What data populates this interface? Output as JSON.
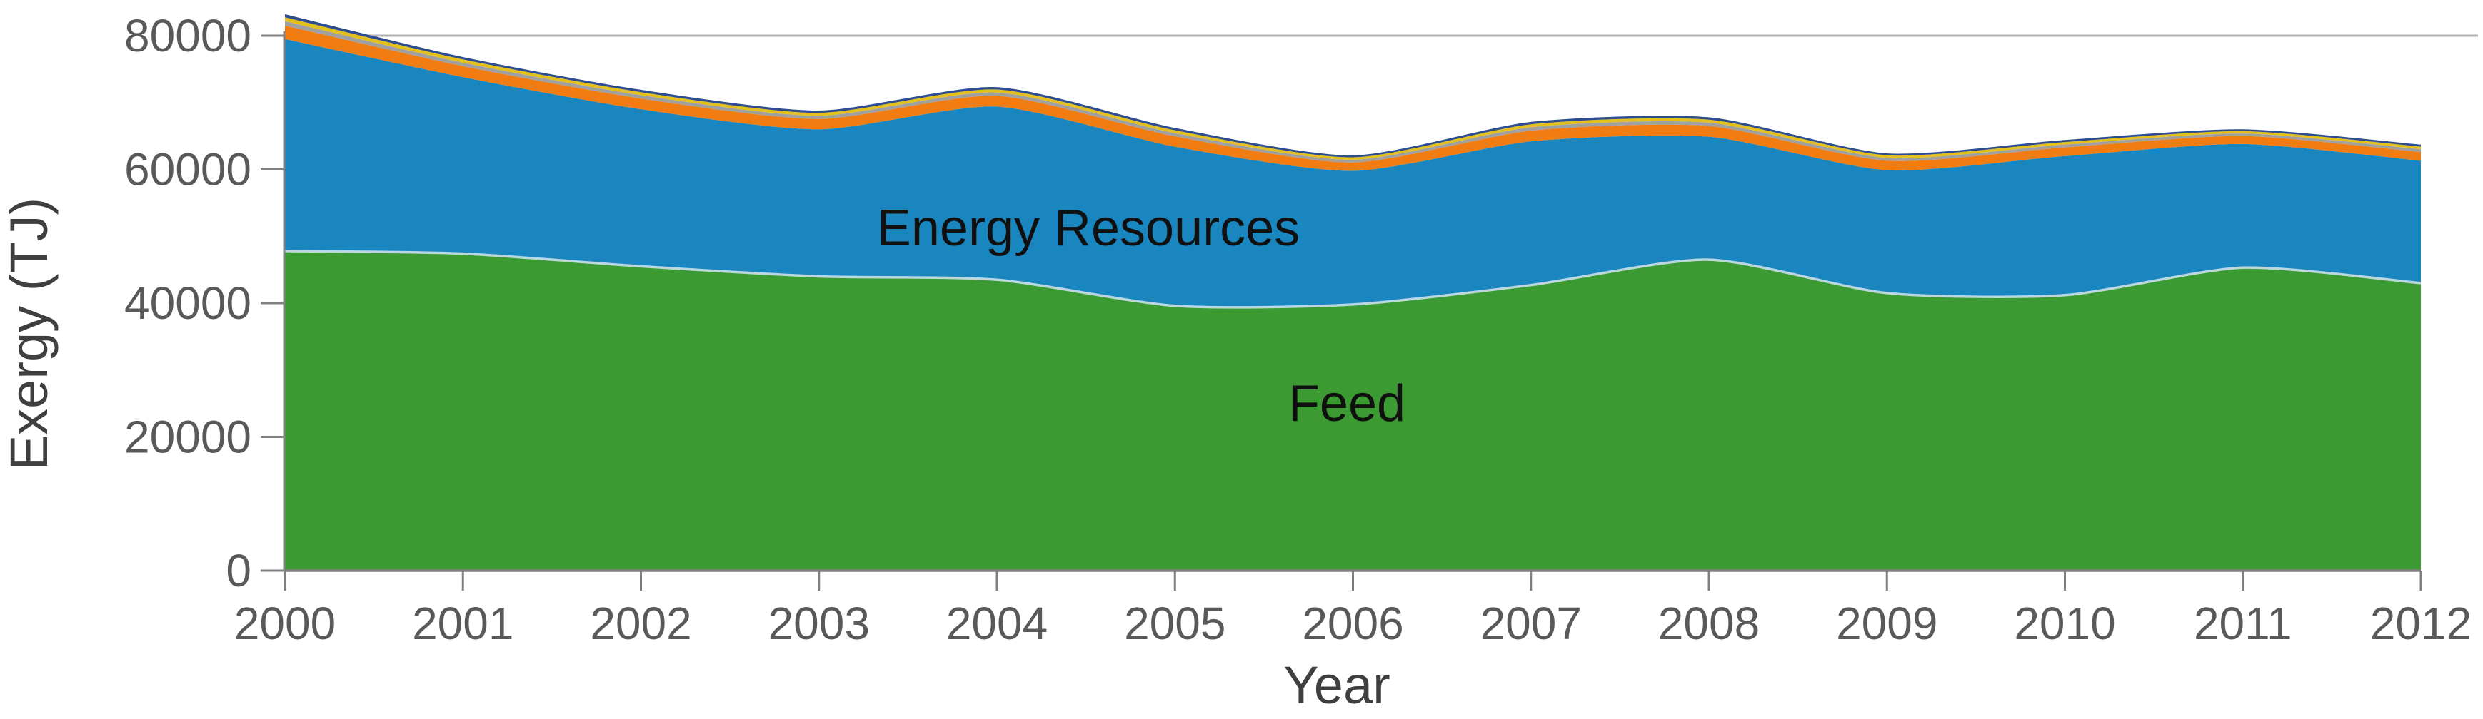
{
  "chart_data": {
    "type": "area",
    "stacked": true,
    "title": "",
    "xlabel": "Year",
    "ylabel": "Exergy (TJ)",
    "x": [
      2000,
      2001,
      2002,
      2003,
      2004,
      2005,
      2006,
      2007,
      2008,
      2009,
      2010,
      2011,
      2012
    ],
    "x_tick_labels": [
      "2000",
      "2001",
      "2002",
      "2003",
      "2004",
      "2005",
      "2006",
      "2007",
      "2008",
      "2009",
      "2010",
      "2011",
      "2012"
    ],
    "y_ticks": [
      0,
      20000,
      40000,
      60000,
      80000
    ],
    "y_tick_labels": [
      "0",
      "20000",
      "40000",
      "60000",
      "80000"
    ],
    "ylim": [
      0,
      85300
    ],
    "grid_y_values": [
      80000
    ],
    "legend": "none",
    "area_labels": {
      "energy_resources": "Energy Resources",
      "feed": "Feed"
    },
    "series": [
      {
        "name": "Feed",
        "color": "#3b9b32",
        "values": [
          47800,
          47400,
          45500,
          44000,
          43500,
          39600,
          39800,
          42700,
          46500,
          41500,
          41200,
          45300,
          43000
        ]
      },
      {
        "name": "Energy Resources",
        "color": "#1a86c0",
        "values": [
          31700,
          26400,
          23500,
          22000,
          25900,
          23800,
          20000,
          21500,
          18400,
          18400,
          20800,
          18500,
          18300
        ]
      },
      {
        "name": "",
        "color": "#f07c12",
        "values": [
          2000,
          1650,
          1600,
          1550,
          1600,
          1550,
          1250,
          1600,
          1600,
          1400,
          1300,
          1200,
          1300
        ]
      },
      {
        "name": "",
        "color": "#a0a0a0",
        "values": [
          650,
          520,
          500,
          480,
          500,
          480,
          400,
          500,
          500,
          430,
          420,
          380,
          420
        ]
      },
      {
        "name": "",
        "color": "#e3c01b",
        "values": [
          600,
          480,
          450,
          430,
          450,
          430,
          360,
          450,
          450,
          390,
          380,
          340,
          380
        ]
      },
      {
        "name": "",
        "color": "#2e4d8e",
        "values": [
          450,
          350,
          350,
          340,
          350,
          340,
          290,
          350,
          350,
          280,
          300,
          280,
          300
        ]
      }
    ],
    "colors": {
      "gridline": "#b0b0b0",
      "axis_line": "#7f7f7f",
      "tick": "#7f7f7f",
      "feed_boundary_highlight": "#cadfe9"
    }
  }
}
